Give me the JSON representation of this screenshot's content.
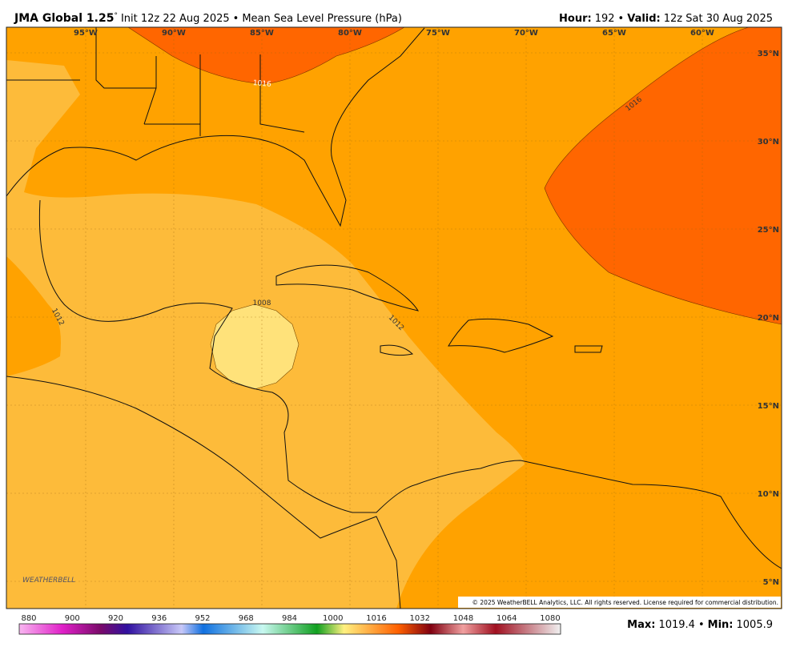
{
  "header": {
    "model": "JMA Global 1.25",
    "degree": "°",
    "init": "Init 12z 22 Aug 2025",
    "separator": "•",
    "product": "Mean Sea Level Pressure (hPa)",
    "hour_label": "Hour:",
    "hour": 192,
    "valid_label": "Valid:",
    "valid": "12z Sat 30 Aug 2025"
  },
  "map": {
    "longitude_labels": [
      "95°W",
      "90°W",
      "85°W",
      "80°W",
      "75°W",
      "70°W",
      "65°W",
      "60°W"
    ],
    "latitude_labels": [
      "35°N",
      "30°N",
      "25°N",
      "20°N",
      "15°N",
      "10°N",
      "5°N"
    ],
    "contour_labels": [
      1016,
      1016,
      1008,
      1012,
      1012
    ],
    "logo": "WEATHERBELL",
    "copyright": "© 2025 WeatherBELL Analytics, LLC. All rights reserved. License required for commercial distribution."
  },
  "colorbar": {
    "labels": [
      880,
      900,
      920,
      936,
      952,
      968,
      984,
      1000,
      1016,
      1032,
      1048,
      1064,
      1080
    ]
  },
  "footer": {
    "max_label": "Max:",
    "max": 1019.4,
    "separator": "•",
    "min_label": "Min:",
    "min": 1005.9
  }
}
